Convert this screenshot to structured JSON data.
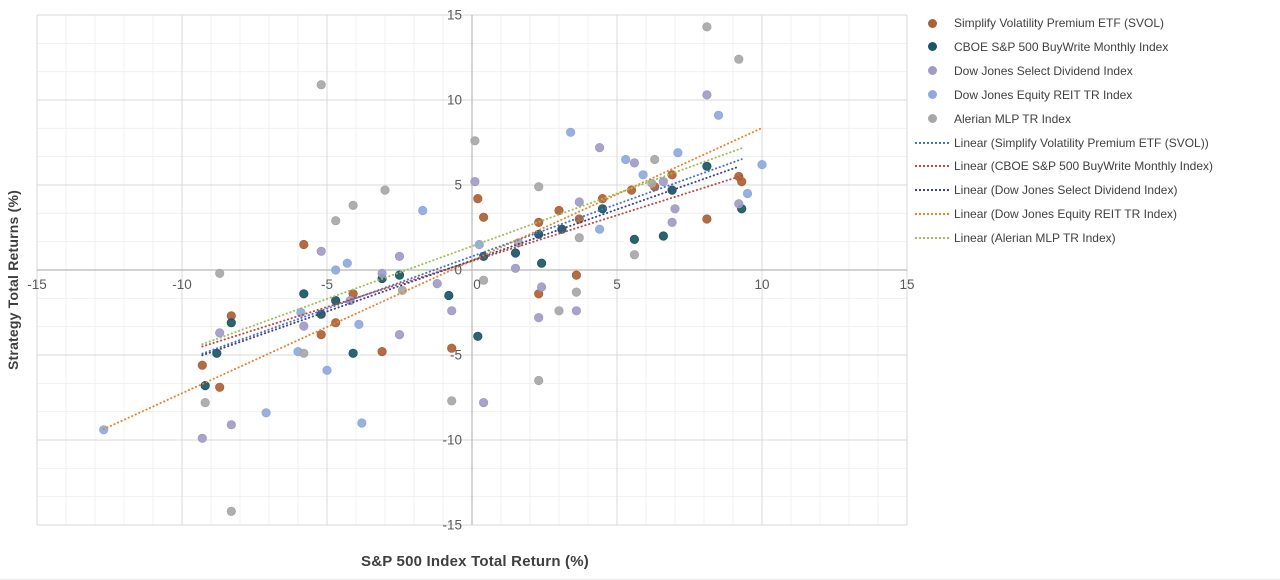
{
  "chart_data": {
    "type": "scatter",
    "title": "",
    "xlabel": "S&P 500 Index Total Return (%)",
    "ylabel": "Strategy Total Returns (%)",
    "xlim": [
      -15,
      15
    ],
    "ylim": [
      -15,
      15
    ],
    "x_major_ticks": [
      -15,
      -10,
      -5,
      0,
      5,
      10,
      15
    ],
    "y_major_ticks": [
      15,
      10,
      5,
      0,
      -5,
      -10,
      -15
    ],
    "x_minor_unit": 1,
    "y_minor_unit": 1.6667,
    "grid": {
      "major": true,
      "minor": true
    },
    "legend_position": "right",
    "series": [
      {
        "key": "svol",
        "name": "Simplify Volatility Premium ETF (SVOL)",
        "color": "#AD6136",
        "marker": "circle",
        "points": [
          [
            -9.3,
            -5.6
          ],
          [
            -8.7,
            -6.9
          ],
          [
            -8.3,
            -2.7
          ],
          [
            -5.8,
            1.5
          ],
          [
            -5.2,
            -3.8
          ],
          [
            -4.7,
            -3.1
          ],
          [
            -4.1,
            -1.4
          ],
          [
            -3.1,
            -4.8
          ],
          [
            -0.7,
            -4.6
          ],
          [
            0.2,
            4.2
          ],
          [
            0.4,
            3.1
          ],
          [
            2.3,
            2.8
          ],
          [
            2.3,
            -1.4
          ],
          [
            3.0,
            3.5
          ],
          [
            3.6,
            -0.3
          ],
          [
            3.7,
            3.0
          ],
          [
            4.5,
            4.2
          ],
          [
            5.5,
            4.7
          ],
          [
            6.3,
            4.9
          ],
          [
            6.9,
            5.6
          ],
          [
            8.1,
            3.0
          ],
          [
            9.2,
            5.5
          ],
          [
            9.3,
            5.2
          ]
        ]
      },
      {
        "key": "cboe",
        "name": "CBOE S&P 500 BuyWrite Monthly Index",
        "color": "#1B5664",
        "marker": "circle",
        "points": [
          [
            -9.2,
            -6.8
          ],
          [
            -8.8,
            -4.9
          ],
          [
            -8.3,
            -3.1
          ],
          [
            -5.8,
            -1.4
          ],
          [
            -5.2,
            -2.6
          ],
          [
            -4.7,
            -1.8
          ],
          [
            -4.1,
            -4.9
          ],
          [
            -3.1,
            -0.5
          ],
          [
            -2.5,
            -0.3
          ],
          [
            -0.8,
            -1.5
          ],
          [
            0.2,
            -3.9
          ],
          [
            0.4,
            0.8
          ],
          [
            1.5,
            1.0
          ],
          [
            2.3,
            2.1
          ],
          [
            2.4,
            0.4
          ],
          [
            3.1,
            2.4
          ],
          [
            4.5,
            3.6
          ],
          [
            5.6,
            1.8
          ],
          [
            6.6,
            2.0
          ],
          [
            6.9,
            4.7
          ],
          [
            8.1,
            6.1
          ],
          [
            9.3,
            3.6
          ]
        ]
      },
      {
        "key": "select-dividend",
        "name": "Dow Jones Select Dividend Index",
        "color": "#A09BC6",
        "marker": "circle",
        "points": [
          [
            -9.3,
            -9.9
          ],
          [
            -8.7,
            -3.7
          ],
          [
            -8.3,
            -9.1
          ],
          [
            -5.8,
            -3.3
          ],
          [
            -5.2,
            1.1
          ],
          [
            -4.2,
            -1.8
          ],
          [
            -3.1,
            -0.2
          ],
          [
            -2.5,
            0.8
          ],
          [
            -2.5,
            -3.8
          ],
          [
            -1.2,
            -0.8
          ],
          [
            -0.7,
            -2.4
          ],
          [
            0.1,
            5.2
          ],
          [
            0.4,
            -7.8
          ],
          [
            1.5,
            0.1
          ],
          [
            2.3,
            -2.8
          ],
          [
            2.4,
            -1.0
          ],
          [
            3.6,
            -2.4
          ],
          [
            3.7,
            4.0
          ],
          [
            4.4,
            7.2
          ],
          [
            5.6,
            6.3
          ],
          [
            6.6,
            5.2
          ],
          [
            6.9,
            2.8
          ],
          [
            7.0,
            3.6
          ],
          [
            8.1,
            10.3
          ],
          [
            9.2,
            3.9
          ]
        ]
      },
      {
        "key": "reit",
        "name": "Dow Jones Equity REIT TR Index",
        "color": "#8FA9DC",
        "marker": "circle",
        "points": [
          [
            -12.7,
            -9.4
          ],
          [
            -7.1,
            -8.4
          ],
          [
            -6.0,
            -4.8
          ],
          [
            -5.9,
            -2.5
          ],
          [
            -5.0,
            -5.9
          ],
          [
            -4.7,
            0.0
          ],
          [
            -4.3,
            0.4
          ],
          [
            -3.9,
            -3.2
          ],
          [
            -3.8,
            -9.0
          ],
          [
            -1.7,
            3.5
          ],
          [
            0.25,
            1.5
          ],
          [
            3.4,
            8.1
          ],
          [
            4.4,
            2.4
          ],
          [
            5.3,
            6.5
          ],
          [
            5.9,
            5.6
          ],
          [
            7.1,
            6.9
          ],
          [
            8.5,
            9.1
          ],
          [
            9.5,
            4.5
          ],
          [
            10.0,
            6.2
          ]
        ]
      },
      {
        "key": "mlp",
        "name": "Alerian MLP TR Index",
        "color": "#A7A7A7",
        "marker": "circle",
        "points": [
          [
            -9.2,
            -7.8
          ],
          [
            -8.7,
            -0.2
          ],
          [
            -8.3,
            -14.2
          ],
          [
            -5.8,
            -4.9
          ],
          [
            -5.2,
            10.9
          ],
          [
            -4.7,
            2.9
          ],
          [
            -4.1,
            3.8
          ],
          [
            -3.0,
            4.7
          ],
          [
            -2.4,
            -1.2
          ],
          [
            -0.7,
            -7.7
          ],
          [
            0.1,
            7.6
          ],
          [
            0.4,
            -0.6
          ],
          [
            1.6,
            1.6
          ],
          [
            2.3,
            4.9
          ],
          [
            2.3,
            -6.5
          ],
          [
            3.0,
            -2.4
          ],
          [
            3.6,
            -1.3
          ],
          [
            3.7,
            1.9
          ],
          [
            5.6,
            0.9
          ],
          [
            6.2,
            5.1
          ],
          [
            6.3,
            6.5
          ],
          [
            8.1,
            14.3
          ],
          [
            9.2,
            12.4
          ]
        ]
      }
    ],
    "trendlines": [
      {
        "key": "linear-svol",
        "name": "Linear (Simplify Volatility Premium ETF (SVOL))",
        "color": "#4472C4",
        "style": "dotted",
        "slope": 0.615,
        "intercept": 0.8,
        "x_range": [
          -9.3,
          9.3
        ]
      },
      {
        "key": "linear-cboe",
        "name": "Linear (CBOE S&P 500 BuyWrite Monthly Index)",
        "color": "#BF4843",
        "style": "dotted",
        "slope": 0.54,
        "intercept": 0.52,
        "x_range": [
          -9.3,
          9.3
        ]
      },
      {
        "key": "linear-select-dividend",
        "name": "Linear (Dow Jones Select Dividend Index)",
        "color": "#41418A",
        "style": "dotted",
        "slope": 0.6,
        "intercept": 0.56,
        "x_range": [
          -9.3,
          9.2
        ]
      },
      {
        "key": "linear-reit",
        "name": "Linear (Dow Jones Equity REIT TR Index)",
        "color": "#E9822E",
        "style": "dotted",
        "slope": 0.78,
        "intercept": 0.55,
        "x_range": [
          -12.7,
          10.0
        ]
      },
      {
        "key": "linear-mlp",
        "name": "Linear (Alerian MLP TR Index)",
        "color": "#9FBC58",
        "style": "dotted",
        "slope": 0.62,
        "intercept": 1.4,
        "x_range": [
          -9.3,
          9.4
        ]
      }
    ]
  },
  "legend": {
    "items": [
      {
        "key": "svol",
        "type": "dot",
        "color": "#AD6136",
        "label": "Simplify Volatility Premium ETF (SVOL)"
      },
      {
        "key": "cboe",
        "type": "dot",
        "color": "#1B5664",
        "label": "CBOE S&P 500 BuyWrite Monthly Index"
      },
      {
        "key": "select-dividend",
        "type": "dot",
        "color": "#A09BC6",
        "label": "Dow Jones Select Dividend Index"
      },
      {
        "key": "reit",
        "type": "dot",
        "color": "#8FA9DC",
        "label": "Dow Jones Equity REIT TR Index"
      },
      {
        "key": "mlp",
        "type": "dot",
        "color": "#A7A7A7",
        "label": "Alerian MLP TR Index"
      },
      {
        "key": "linear-svol",
        "type": "line",
        "color": "#4472C4",
        "label": "Linear (Simplify Volatility Premium ETF (SVOL))"
      },
      {
        "key": "linear-cboe",
        "type": "line",
        "color": "#BF4843",
        "label": "Linear (CBOE S&P 500 BuyWrite Monthly Index)"
      },
      {
        "key": "linear-select-dividend",
        "type": "line",
        "color": "#41418A",
        "label": "Linear (Dow Jones Select Dividend Index)"
      },
      {
        "key": "linear-reit",
        "type": "line",
        "color": "#E9822E",
        "label": "Linear (Dow Jones Equity REIT TR Index)"
      },
      {
        "key": "linear-mlp",
        "type": "line",
        "color": "#9FBC58",
        "label": "Linear (Alerian MLP TR Index)"
      }
    ]
  },
  "axis_style": {
    "tick_color": "#595959",
    "axis_line_color": "#b8b8b8",
    "major_grid_color": "#d9d9d9",
    "minor_grid_color": "#f0f0f0"
  }
}
